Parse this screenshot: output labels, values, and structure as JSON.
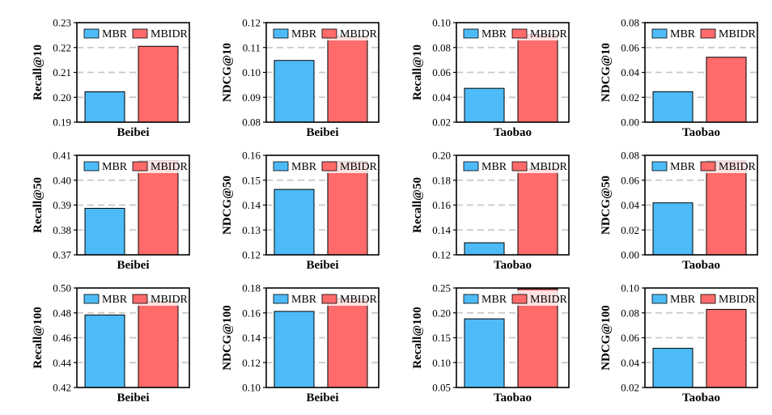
{
  "colors": {
    "mbr": "#4DBBF8",
    "mbidr": "#FF6B6B",
    "grid": "#c8c8c8",
    "legend_bg": "#ffffff"
  },
  "chart_data": [
    {
      "type": "bar",
      "ylabel": "Recall@10",
      "xlabel": "Beibei",
      "ylim": [
        0.19,
        0.23
      ],
      "ticks": [
        "0.19",
        "0.20",
        "0.21",
        "0.22",
        "0.23"
      ],
      "series": [
        {
          "name": "MBR",
          "values": [
            0.2022
          ]
        },
        {
          "name": "MBIDR",
          "values": [
            0.2205
          ]
        }
      ]
    },
    {
      "type": "bar",
      "ylabel": "NDCG@10",
      "xlabel": "Beibei",
      "ylim": [
        0.08,
        0.12
      ],
      "ticks": [
        "0.08",
        "0.09",
        "0.10",
        "0.11",
        "0.12"
      ],
      "series": [
        {
          "name": "MBR",
          "values": [
            0.1048
          ]
        },
        {
          "name": "MBIDR",
          "values": [
            0.1145
          ]
        }
      ]
    },
    {
      "type": "bar",
      "ylabel": "Recall@10",
      "xlabel": "Taobao",
      "ylim": [
        0.02,
        0.1
      ],
      "ticks": [
        "0.02",
        "0.04",
        "0.06",
        "0.08",
        "0.10"
      ],
      "series": [
        {
          "name": "MBR",
          "values": [
            0.0472
          ]
        },
        {
          "name": "MBIDR",
          "values": [
            0.0905
          ]
        }
      ]
    },
    {
      "type": "bar",
      "ylabel": "NDCG@10",
      "xlabel": "Taobao",
      "ylim": [
        0.0,
        0.08
      ],
      "ticks": [
        "0.00",
        "0.02",
        "0.04",
        "0.06",
        "0.08"
      ],
      "series": [
        {
          "name": "MBR",
          "values": [
            0.0245
          ]
        },
        {
          "name": "MBIDR",
          "values": [
            0.0522
          ]
        }
      ]
    },
    {
      "type": "bar",
      "ylabel": "Recall@50",
      "xlabel": "Beibei",
      "ylim": [
        0.37,
        0.41
      ],
      "ticks": [
        "0.37",
        "0.38",
        "0.39",
        "0.40",
        "0.41"
      ],
      "series": [
        {
          "name": "MBR",
          "values": [
            0.3887
          ]
        },
        {
          "name": "MBIDR",
          "values": [
            0.4078
          ]
        }
      ]
    },
    {
      "type": "bar",
      "ylabel": "NDCG@50",
      "xlabel": "Beibei",
      "ylim": [
        0.12,
        0.16
      ],
      "ticks": [
        "0.12",
        "0.13",
        "0.14",
        "0.15",
        "0.16"
      ],
      "series": [
        {
          "name": "MBR",
          "values": [
            0.1463
          ]
        },
        {
          "name": "MBIDR",
          "values": [
            0.1575
          ]
        }
      ]
    },
    {
      "type": "bar",
      "ylabel": "Recall@50",
      "xlabel": "Taobao",
      "ylim": [
        0.12,
        0.2
      ],
      "ticks": [
        "0.12",
        "0.14",
        "0.16",
        "0.18",
        "0.20"
      ],
      "series": [
        {
          "name": "MBR",
          "values": [
            0.1297
          ]
        },
        {
          "name": "MBIDR",
          "values": [
            0.189
          ]
        }
      ]
    },
    {
      "type": "bar",
      "ylabel": "NDCG@50",
      "xlabel": "Taobao",
      "ylim": [
        0.0,
        0.08
      ],
      "ticks": [
        "0.00",
        "0.02",
        "0.04",
        "0.06",
        "0.08"
      ],
      "series": [
        {
          "name": "MBR",
          "values": [
            0.0418
          ]
        },
        {
          "name": "MBIDR",
          "values": [
            0.0755
          ]
        }
      ]
    },
    {
      "type": "bar",
      "ylabel": "Recall@100",
      "xlabel": "Beibei",
      "ylim": [
        0.42,
        0.5
      ],
      "ticks": [
        "0.42",
        "0.44",
        "0.46",
        "0.48",
        "0.50"
      ],
      "series": [
        {
          "name": "MBR",
          "values": [
            0.4783
          ]
        },
        {
          "name": "MBIDR",
          "values": [
            0.4895
          ]
        }
      ]
    },
    {
      "type": "bar",
      "ylabel": "NDCG@100",
      "xlabel": "Beibei",
      "ylim": [
        0.1,
        0.18
      ],
      "ticks": [
        "0.10",
        "0.12",
        "0.14",
        "0.16",
        "0.18"
      ],
      "series": [
        {
          "name": "MBR",
          "values": [
            0.1612
          ]
        },
        {
          "name": "MBIDR",
          "values": [
            0.1715
          ]
        }
      ]
    },
    {
      "type": "bar",
      "ylabel": "Recall@100",
      "xlabel": "Taobao",
      "ylim": [
        0.05,
        0.25
      ],
      "ticks": [
        "0.05",
        "0.10",
        "0.15",
        "0.20",
        "0.25"
      ],
      "series": [
        {
          "name": "MBR",
          "values": [
            0.188
          ]
        },
        {
          "name": "MBIDR",
          "values": [
            0.248
          ]
        }
      ]
    },
    {
      "type": "bar",
      "ylabel": "NDCG@100",
      "xlabel": "Taobao",
      "ylim": [
        0.02,
        0.1
      ],
      "ticks": [
        "0.02",
        "0.04",
        "0.06",
        "0.08",
        "0.10"
      ],
      "series": [
        {
          "name": "MBR",
          "values": [
            0.0515
          ]
        },
        {
          "name": "MBIDR",
          "values": [
            0.0828
          ]
        }
      ]
    }
  ]
}
